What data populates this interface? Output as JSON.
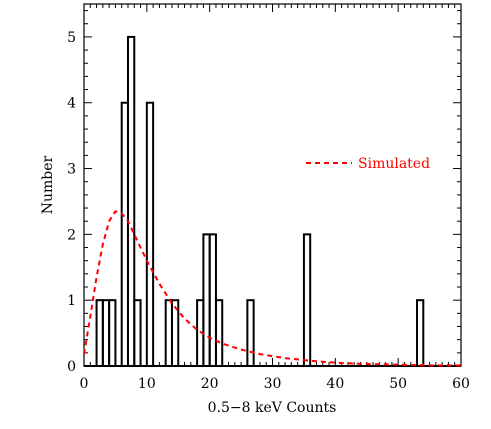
{
  "chart_data": {
    "type": "bar",
    "xlabel": "0.5−8 keV Counts",
    "ylabel": "Number",
    "xlim": [
      0,
      60
    ],
    "ylim": [
      0,
      5.5
    ],
    "x_ticks": [
      0,
      10,
      20,
      30,
      40,
      50,
      60
    ],
    "y_ticks": [
      0,
      1,
      2,
      3,
      4,
      5
    ],
    "bin_width": 1,
    "histogram": {
      "bin_start": 0,
      "counts": [
        0,
        0,
        1,
        1,
        1,
        0,
        4,
        5,
        1,
        0,
        4,
        0,
        0,
        1,
        1,
        0,
        0,
        0,
        1,
        2,
        2,
        1,
        0,
        0,
        0,
        0,
        1,
        0,
        0,
        0,
        0,
        0,
        0,
        0,
        0,
        2,
        0,
        0,
        0,
        0,
        0,
        0,
        0,
        0,
        0,
        0,
        0,
        0,
        0,
        0,
        0,
        0,
        0,
        1,
        0,
        0,
        0,
        0,
        0,
        0
      ]
    },
    "series": [
      {
        "name": "Simulated",
        "style": "dashed",
        "color": "#ff0000",
        "x": [
          0,
          1,
          2,
          3,
          4,
          5,
          6,
          7,
          8,
          9,
          10,
          12,
          14,
          16,
          18,
          20,
          22,
          25,
          28,
          32,
          36,
          40,
          45,
          50,
          55,
          60
        ],
        "y": [
          0.18,
          0.75,
          1.35,
          1.85,
          2.2,
          2.35,
          2.32,
          2.2,
          2.0,
          1.8,
          1.6,
          1.25,
          0.95,
          0.72,
          0.55,
          0.43,
          0.34,
          0.25,
          0.18,
          0.12,
          0.08,
          0.05,
          0.03,
          0.02,
          0.01,
          0.01
        ]
      }
    ],
    "legend": {
      "position": "right-middle"
    }
  }
}
